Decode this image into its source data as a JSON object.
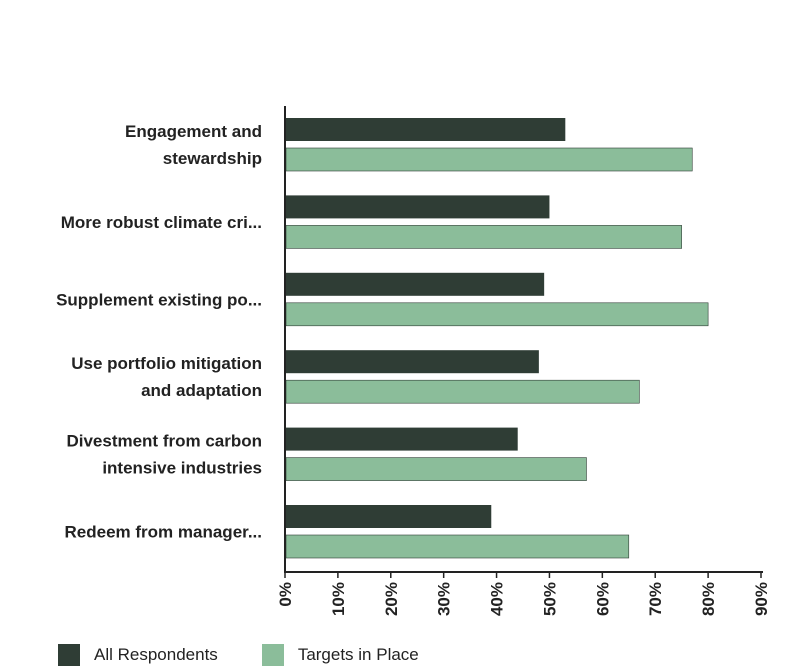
{
  "chart_data": {
    "type": "bar",
    "orientation": "horizontal",
    "categories": [
      [
        "Engagement and",
        "stewardship"
      ],
      [
        "More robust climate cri..."
      ],
      [
        "Supplement existing po..."
      ],
      [
        "Use portfolio mitigation",
        "and adaptation"
      ],
      [
        "Divestment from carbon",
        "intensive industries"
      ],
      [
        "Redeem from manager..."
      ]
    ],
    "series": [
      {
        "name": "All Respondents",
        "color": "#2f3d35",
        "values": [
          53,
          50,
          49,
          48,
          44,
          39
        ]
      },
      {
        "name": "Targets in Place",
        "color": "#8bbd9a",
        "values": [
          77,
          75,
          80,
          67,
          57,
          65
        ]
      }
    ],
    "xlim": [
      0,
      90
    ],
    "xticks": [
      "0%",
      "10%",
      "20%",
      "30%",
      "40%",
      "50%",
      "60%",
      "70%",
      "80%",
      "90%"
    ],
    "legend_position": "bottom-left",
    "grid": false
  }
}
